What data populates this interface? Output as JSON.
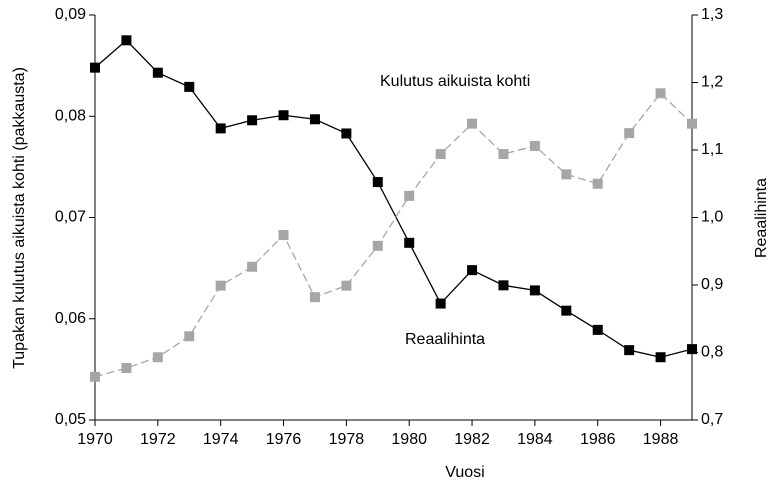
{
  "chart_data": {
    "type": "line",
    "xlabel": "Vuosi",
    "ylabel": "Tupakan kulutus aikuista kohti (pakkausta)",
    "y2label": "Reaalihinta",
    "x": [
      1970,
      1971,
      1972,
      1973,
      1974,
      1975,
      1976,
      1977,
      1978,
      1979,
      1980,
      1981,
      1982,
      1983,
      1984,
      1985,
      1986,
      1987,
      1988,
      1989
    ],
    "xlim": [
      1970,
      1989
    ],
    "xticks": [
      1970,
      1972,
      1974,
      1976,
      1978,
      1980,
      1982,
      1984,
      1986,
      1988
    ],
    "ylim": [
      0.05,
      0.09
    ],
    "yticks": [
      {
        "value": 0.05,
        "label": "0,05"
      },
      {
        "value": 0.06,
        "label": "0,06"
      },
      {
        "value": 0.07,
        "label": "0,07"
      },
      {
        "value": 0.08,
        "label": "0,08"
      },
      {
        "value": 0.09,
        "label": "0,09"
      }
    ],
    "y2lim": [
      0.7,
      1.3
    ],
    "y2ticks": [
      {
        "value": 0.7,
        "label": "0,7"
      },
      {
        "value": 0.8,
        "label": "0,8"
      },
      {
        "value": 0.9,
        "label": "0,9"
      },
      {
        "value": 1.0,
        "label": "1,0"
      },
      {
        "value": 1.1,
        "label": "1,1"
      },
      {
        "value": 1.2,
        "label": "1,2"
      },
      {
        "value": 1.3,
        "label": "1,3"
      }
    ],
    "series": [
      {
        "name": "Kulutus aikuista kohti",
        "color": "#000000",
        "values": [
          0.0848,
          0.0875,
          0.0843,
          0.0829,
          0.0788,
          0.0796,
          0.0801,
          0.0797,
          0.0783,
          0.0735,
          0.0675,
          0.0615,
          0.0648,
          0.0633,
          0.0628,
          0.0608,
          0.0589,
          0.0569,
          0.0562,
          0.057
        ]
      },
      {
        "name": "Reaalihinta",
        "color": "#a6a6a6",
        "axis": "y2",
        "values": [
          0.764,
          0.777,
          0.793,
          0.824,
          0.899,
          0.927,
          0.974,
          0.882,
          0.899,
          0.958,
          1.032,
          1.094,
          1.139,
          1.094,
          1.106,
          1.064,
          1.05,
          1.125,
          1.184,
          1.139
        ]
      }
    ]
  }
}
